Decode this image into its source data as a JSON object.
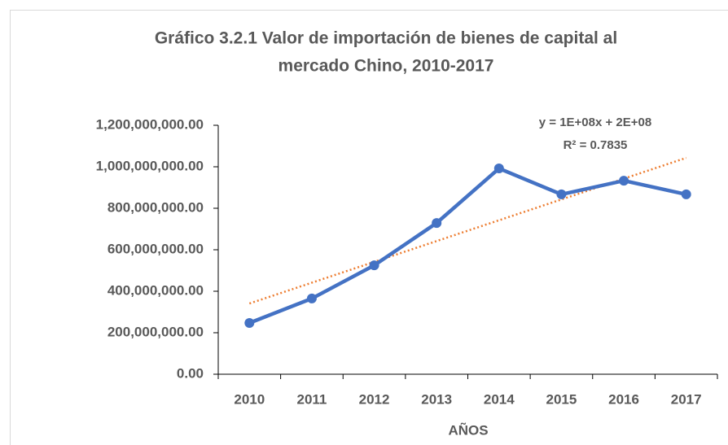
{
  "chart_data": {
    "type": "line",
    "title": [
      "Gráfico 3.2.1 Valor de importación de bienes de capital al",
      "mercado Chino, 2010-2017"
    ],
    "x_label": "AÑOS",
    "categories": [
      "2010",
      "2011",
      "2012",
      "2013",
      "2014",
      "2015",
      "2016",
      "2017"
    ],
    "series": [
      {
        "color": "#4472c4",
        "values": [
          247000000,
          365000000,
          525000000,
          729000000,
          992000000,
          867000000,
          933000000,
          867000000
        ]
      }
    ],
    "trendline": {
      "color": "#ed7d31",
      "values": [
        341000000,
        1043000000
      ],
      "annotations": [
        "y = 1E+08x + 2E+08",
        "R² = 0.7835"
      ]
    },
    "ylim": [
      0,
      1200000000
    ],
    "yticks": [
      {
        "value": 0,
        "label": "0.00"
      },
      {
        "value": 200000000,
        "label": "200,000,000.00"
      },
      {
        "value": 400000000,
        "label": "400,000,000.00"
      },
      {
        "value": 600000000,
        "label": "600,000,000.00"
      },
      {
        "value": 800000000,
        "label": "800,000,000.00"
      },
      {
        "value": 1000000000,
        "label": "1,000,000,000.00"
      },
      {
        "value": 1200000000,
        "label": "1,200,000,000.00"
      }
    ],
    "grid": false
  }
}
